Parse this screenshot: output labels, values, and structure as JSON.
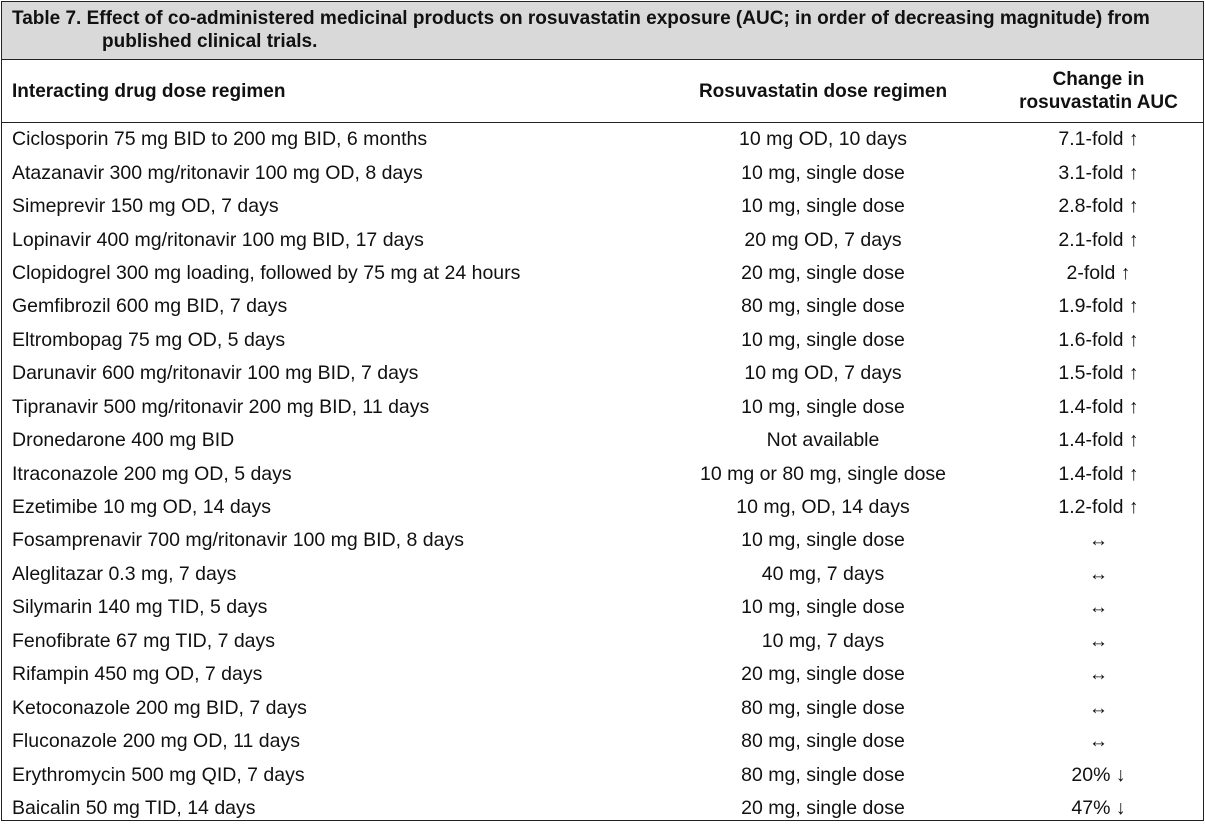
{
  "caption": "Table 7. Effect of co-administered medicinal products on rosuvastatin exposure (AUC; in order of decreasing magnitude) from published clinical trials.",
  "headers": {
    "drug": "Interacting drug dose regimen",
    "dose": "Rosuvastatin dose regimen",
    "change": "Change in rosuvastatin AUC"
  },
  "rows": [
    {
      "drug": "Ciclosporin 75 mg BID to 200 mg BID, 6 months",
      "dose": "10 mg OD, 10 days",
      "change": "7.1-fold ↑"
    },
    {
      "drug": "Atazanavir 300 mg/ritonavir 100 mg OD, 8 days",
      "dose": "10 mg, single dose",
      "change": "3.1-fold ↑"
    },
    {
      "drug": "Simeprevir 150 mg OD, 7 days",
      "dose": "10 mg, single dose",
      "change": "2.8-fold ↑"
    },
    {
      "drug": "Lopinavir 400 mg/ritonavir 100 mg BID, 17 days",
      "dose": "20 mg OD, 7 days",
      "change": "2.1-fold ↑"
    },
    {
      "drug": "Clopidogrel 300 mg loading, followed by 75 mg at 24 hours",
      "dose": "20 mg, single dose",
      "change": "2-fold ↑"
    },
    {
      "drug": "Gemfibrozil 600 mg BID, 7 days",
      "dose": "80 mg, single dose",
      "change": "1.9-fold ↑"
    },
    {
      "drug": "Eltrombopag 75 mg OD, 5 days",
      "dose": "10 mg, single dose",
      "change": "1.6-fold ↑"
    },
    {
      "drug": "Darunavir 600 mg/ritonavir 100 mg BID, 7 days",
      "dose": "10 mg OD, 7 days",
      "change": "1.5-fold ↑"
    },
    {
      "drug": "Tipranavir 500 mg/ritonavir 200 mg BID, 11 days",
      "dose": "10 mg, single dose",
      "change": "1.4-fold ↑"
    },
    {
      "drug": "Dronedarone 400 mg BID",
      "dose": "Not available",
      "change": "1.4-fold ↑"
    },
    {
      "drug": "Itraconazole 200 mg OD, 5 days",
      "dose": "10 mg or 80 mg, single dose",
      "change": "1.4-fold ↑"
    },
    {
      "drug": "Ezetimibe 10 mg OD, 14 days",
      "dose": "10 mg, OD, 14 days",
      "change": "1.2-fold ↑"
    },
    {
      "drug": "Fosamprenavir 700 mg/ritonavir 100 mg BID, 8 days",
      "dose": "10 mg, single dose",
      "change": "↔"
    },
    {
      "drug": "Aleglitazar 0.3 mg, 7 days",
      "dose": "40 mg, 7 days",
      "change": "↔"
    },
    {
      "drug": "Silymarin 140 mg TID, 5 days",
      "dose": "10 mg, single dose",
      "change": "↔"
    },
    {
      "drug": "Fenofibrate 67 mg TID, 7 days",
      "dose": "10 mg, 7 days",
      "change": "↔"
    },
    {
      "drug": "Rifampin 450 mg OD, 7 days",
      "dose": "20 mg, single dose",
      "change": "↔"
    },
    {
      "drug": "Ketoconazole 200 mg BID, 7 days",
      "dose": "80 mg, single dose",
      "change": "↔"
    },
    {
      "drug": "Fluconazole 200 mg OD, 11 days",
      "dose": "80 mg, single dose",
      "change": "↔"
    },
    {
      "drug": "Erythromycin 500 mg QID, 7 days",
      "dose": "80 mg, single dose",
      "change": "20% ↓"
    },
    {
      "drug": "Baicalin 50 mg TID, 14 days",
      "dose": "20 mg, single dose",
      "change": "47% ↓"
    }
  ]
}
